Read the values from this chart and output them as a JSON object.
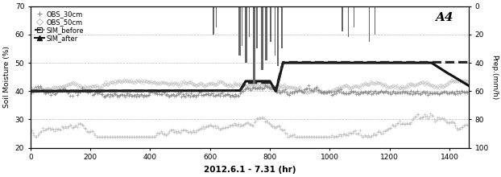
{
  "title": "A4",
  "xlabel": "2012.6.1 - 7.31 (hr)",
  "ylabel_left": "Soil Moisture (%)",
  "ylabel_right": "Prep.(mm/h)",
  "xlim": [
    0,
    1464
  ],
  "ylim_left": [
    20,
    70
  ],
  "ylim_right": [
    0,
    100
  ],
  "yticks_left": [
    20,
    30,
    40,
    50,
    60,
    70
  ],
  "yticks_right": [
    0,
    20,
    40,
    60,
    80,
    100
  ],
  "xticks": [
    0,
    200,
    400,
    600,
    800,
    1000,
    1200,
    1400
  ],
  "background_color": "#ffffff",
  "grid_color": "#aaaaaa",
  "legend_labels": [
    "OBS_30cm",
    "OBS_50cm",
    "SIM_before",
    "SIM_after"
  ],
  "obs30_color": "#888888",
  "obs50_color": "#bbbbbb",
  "obs50_lower_color": "#bbbbbb",
  "sim_before_color": "#222222",
  "sim_after_color": "#111111",
  "precip_color": "#666666",
  "sim_before_linewidth": 2.2,
  "sim_after_linewidth": 2.2
}
